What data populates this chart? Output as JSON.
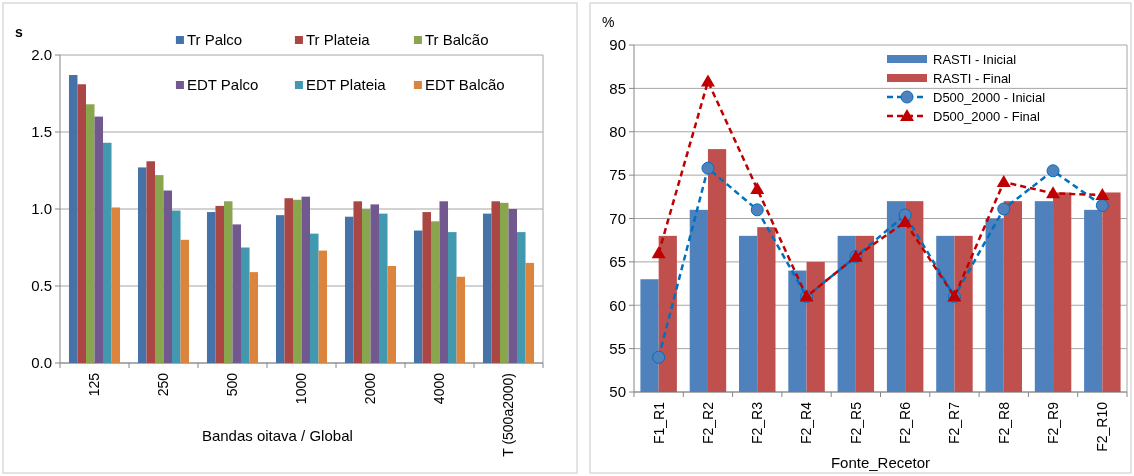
{
  "chart_data": [
    {
      "type": "bar",
      "ylabel": "s",
      "xlabel": "Bandas oitava / Global",
      "categories": [
        "125",
        "250",
        "500",
        "1000",
        "2000",
        "4000",
        "T (500a2000)"
      ],
      "ylim": [
        0,
        2
      ],
      "yticks": [
        {
          "value": 0,
          "label": "0.0"
        },
        {
          "value": 0.5,
          "label": "0.5"
        },
        {
          "value": 1,
          "label": "1.0"
        },
        {
          "value": 1.5,
          "label": "1.5"
        },
        {
          "value": 2,
          "label": "2.0"
        }
      ],
      "grid": "y",
      "legend": "top",
      "series": [
        {
          "name": "Tr Palco",
          "color": "#4572a7",
          "values": [
            1.87,
            1.27,
            0.98,
            0.96,
            0.95,
            0.86,
            0.97
          ]
        },
        {
          "name": "Tr Plateia",
          "color": "#aa4643",
          "values": [
            1.81,
            1.31,
            1.02,
            1.07,
            1.05,
            0.98,
            1.05
          ]
        },
        {
          "name": "Tr Balcão",
          "color": "#89a54e",
          "values": [
            1.68,
            1.22,
            1.05,
            1.06,
            1.0,
            0.92,
            1.04
          ]
        },
        {
          "name": "EDT Palco",
          "color": "#71588f",
          "values": [
            1.6,
            1.12,
            0.9,
            1.08,
            1.03,
            1.05,
            1.0
          ]
        },
        {
          "name": "EDT Plateia",
          "color": "#4198af",
          "values": [
            1.43,
            0.99,
            0.75,
            0.84,
            0.97,
            0.85,
            0.85
          ]
        },
        {
          "name": "EDT Balcão",
          "color": "#db843d",
          "values": [
            1.01,
            0.8,
            0.59,
            0.73,
            0.63,
            0.56,
            0.65
          ]
        }
      ]
    },
    {
      "type": "bar",
      "ylabel": "%",
      "xlabel": "Fonte_Recetor",
      "categories": [
        "F1_R1",
        "F2_R2",
        "F2_R3",
        "F2_R4",
        "F2_R5",
        "F2_R6",
        "F2_R7",
        "F2_R8",
        "F2_R9",
        "F2_R10"
      ],
      "ylim": [
        50,
        90
      ],
      "yticks": [
        50,
        55,
        60,
        65,
        70,
        75,
        80,
        85,
        90
      ],
      "grid": "y",
      "legend": "top right",
      "series": [
        {
          "name": "RASTI - Inicial",
          "color": "#4f81bd",
          "values": [
            63,
            71,
            68,
            64,
            68,
            72,
            68,
            70,
            72,
            71
          ]
        },
        {
          "name": "RASTI - Final",
          "color": "#c0504d",
          "values": [
            68,
            78,
            69,
            65,
            68,
            72,
            68,
            72,
            73,
            73
          ]
        },
        {
          "name": "D500_2000 - Inicial",
          "type": "line",
          "color": "#0070c0",
          "marker": "circle",
          "line_style": "dashed",
          "values": [
            54,
            75.8,
            71,
            61,
            65.6,
            70.4,
            61,
            71.1,
            75.5,
            71.5
          ]
        },
        {
          "name": "D500_2000 - Final",
          "type": "line",
          "color": "#c00000",
          "marker": "triangle",
          "line_style": "dashed",
          "values": [
            66,
            85.8,
            73.4,
            61,
            65.6,
            69.6,
            61,
            74.2,
            72.9,
            72.7
          ]
        }
      ]
    }
  ]
}
